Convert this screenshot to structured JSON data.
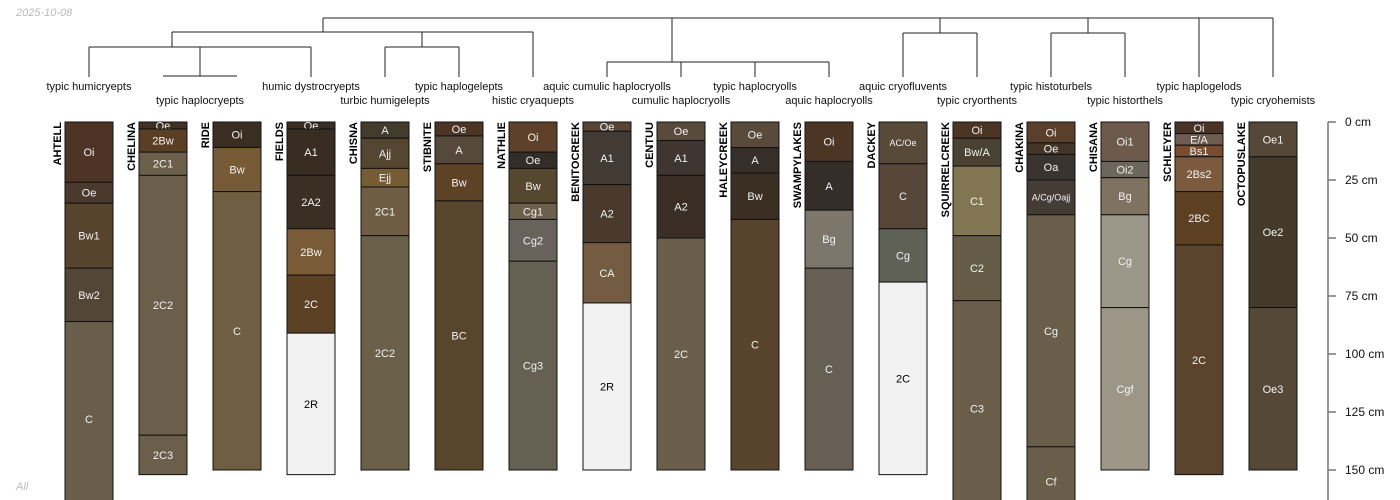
{
  "date": "2025-10-08",
  "footer": "All",
  "axis": {
    "unit": "cm",
    "ticks": [
      0,
      25,
      50,
      75,
      100,
      125,
      150
    ]
  },
  "taxa": [
    "typic humicryepts",
    "typic haplocryepts",
    "humic dystrocryepts",
    "turbic humigelepts",
    "typic haplogelepts",
    "histic cryaquepts",
    "aquic cumulic haplocryolls",
    "cumulic haplocryolls",
    "typic haplocryolls",
    "aquic haplocryolls",
    "aquic cryofluvents",
    "typic cryorthents",
    "typic histoturbels",
    "typic historthels",
    "typic haplogelods",
    "typic cryohemists"
  ],
  "profiles": [
    {
      "name": "AHTELL",
      "horizons": [
        [
          "Oi",
          0,
          26,
          "#4d3424"
        ],
        [
          "Oe",
          26,
          35,
          "#4a3a2e"
        ],
        [
          "Bw1",
          35,
          63,
          "#56442e"
        ],
        [
          "Bw2",
          63,
          86,
          "#544636"
        ],
        [
          "C",
          86,
          170,
          "#6a5d4a"
        ]
      ]
    },
    {
      "name": "CHELINA",
      "horizons": [
        [
          "Oe",
          0,
          3,
          "#3f3224"
        ],
        [
          "2Bw",
          3,
          13,
          "#5b3f24"
        ],
        [
          "2C1",
          13,
          23,
          "#6c604d"
        ],
        [
          "2C2",
          23,
          135,
          "#6b5e4a"
        ],
        [
          "2C3",
          135,
          152,
          "#6b5e4a"
        ]
      ]
    },
    {
      "name": "RIDE",
      "horizons": [
        [
          "Oi",
          0,
          11,
          "#3a2d22"
        ],
        [
          "Bw",
          11,
          30,
          "#775a36"
        ],
        [
          "C",
          30,
          150,
          "#705e43"
        ]
      ]
    },
    {
      "name": "FIELDS",
      "horizons": [
        [
          "Oe",
          0,
          3,
          "#3a2e24"
        ],
        [
          "A1",
          3,
          23,
          "#392d22"
        ],
        [
          "2A2",
          23,
          46,
          "#3b2e22"
        ],
        [
          "2Bw",
          46,
          66,
          "#7a5b38"
        ],
        [
          "2C",
          66,
          91,
          "#5b4024"
        ],
        [
          "2R",
          91,
          152,
          "#f2f2f2"
        ]
      ]
    },
    {
      "name": "CHISNA",
      "horizons": [
        [
          "A",
          0,
          7,
          "#433b2c"
        ],
        [
          "Ajj",
          7,
          20,
          "#554631"
        ],
        [
          "Ejj",
          20,
          28,
          "#755c34"
        ],
        [
          "2C1",
          28,
          49,
          "#6e5d43"
        ],
        [
          "2C2",
          49,
          150,
          "#6a5f49"
        ]
      ]
    },
    {
      "name": "STIBNITE",
      "horizons": [
        [
          "Oe",
          0,
          6,
          "#4d3526"
        ],
        [
          "A",
          6,
          18,
          "#56493b"
        ],
        [
          "Bw",
          18,
          34,
          "#5e4226"
        ],
        [
          "BC",
          34,
          150,
          "#57452c"
        ]
      ]
    },
    {
      "name": "NATHLIE",
      "horizons": [
        [
          "Oi",
          0,
          13,
          "#5f4028"
        ],
        [
          "Oe",
          13,
          20,
          "#332d28"
        ],
        [
          "Bw",
          20,
          35,
          "#56472f"
        ],
        [
          "Cg1",
          35,
          42,
          "#6c604d"
        ],
        [
          "Cg2",
          42,
          60,
          "#67625a"
        ],
        [
          "Cg3",
          60,
          150,
          "#656052"
        ]
      ]
    },
    {
      "name": "BENITOCREEK",
      "horizons": [
        [
          "Oe",
          0,
          4,
          "#574638"
        ],
        [
          "A1",
          4,
          27,
          "#423a33"
        ],
        [
          "A2",
          27,
          52,
          "#4a3a2e"
        ],
        [
          "CA",
          52,
          78,
          "#735c42"
        ],
        [
          "2R",
          78,
          150,
          "#f2f2f2"
        ]
      ]
    },
    {
      "name": "CENTUU",
      "horizons": [
        [
          "Oe",
          0,
          8,
          "#5a4a3c"
        ],
        [
          "A1",
          8,
          23,
          "#403631"
        ],
        [
          "A2",
          23,
          50,
          "#3a2e24"
        ],
        [
          "2C",
          50,
          150,
          "#6a5e4a"
        ]
      ]
    },
    {
      "name": "HALEYCREEK",
      "horizons": [
        [
          "Oe",
          0,
          11,
          "#5a4a3c"
        ],
        [
          "A",
          11,
          22,
          "#362e28"
        ],
        [
          "Bw",
          22,
          42,
          "#3b2e22"
        ],
        [
          "C",
          42,
          150,
          "#58442c"
        ]
      ]
    },
    {
      "name": "SWAMPYLAKES",
      "horizons": [
        [
          "Oi",
          0,
          17,
          "#4d3526"
        ],
        [
          "A",
          17,
          38,
          "#342d28"
        ],
        [
          "Bg",
          38,
          63,
          "#7d776b"
        ],
        [
          "C",
          63,
          150,
          "#675f53"
        ]
      ]
    },
    {
      "name": "DACKEY",
      "horizons": [
        [
          "AC/Oe",
          0,
          18,
          "#594939"
        ],
        [
          "C",
          18,
          46,
          "#584738"
        ],
        [
          "Cg",
          46,
          69,
          "#5f6157"
        ],
        [
          "2C",
          69,
          152,
          "#f2f2f2"
        ]
      ]
    },
    {
      "name": "SQUIRRELCREEK",
      "horizons": [
        [
          "Oi",
          0,
          7,
          "#4d3526"
        ],
        [
          "Bw/A",
          7,
          19,
          "#4a4232"
        ],
        [
          "C1",
          19,
          49,
          "#817552"
        ],
        [
          "C2",
          49,
          77,
          "#655c47"
        ],
        [
          "C3",
          77,
          170,
          "#6a5e4a"
        ]
      ]
    },
    {
      "name": "CHAKINA",
      "horizons": [
        [
          "Oi",
          0,
          9,
          "#5a3f2a"
        ],
        [
          "Oe",
          9,
          14,
          "#433528"
        ],
        [
          "Oa",
          14,
          25,
          "#3a3431"
        ],
        [
          "A/Cg/Oajj",
          25,
          40,
          "#463c36"
        ],
        [
          "Cg",
          40,
          140,
          "#6a5e4a"
        ],
        [
          "Cf",
          140,
          170,
          "#6a5e4a"
        ]
      ]
    },
    {
      "name": "CHISANA",
      "horizons": [
        [
          "Oi1",
          0,
          17,
          "#6e5a4c"
        ],
        [
          "Oi2",
          17,
          24,
          "#6e665a"
        ],
        [
          "Bg",
          24,
          40,
          "#807260"
        ],
        [
          "Cg",
          40,
          80,
          "#9d978a"
        ],
        [
          "Cgf",
          80,
          150,
          "#9d9586"
        ]
      ]
    },
    {
      "name": "SCHLEYER",
      "horizons": [
        [
          "Oi",
          0,
          5,
          "#4a3428"
        ],
        [
          "E/A",
          5,
          10,
          "#6e5d4e"
        ],
        [
          "Bs1",
          10,
          15,
          "#7a4c30"
        ],
        [
          "2Bs2",
          15,
          30,
          "#7c5a3e"
        ],
        [
          "2BC",
          30,
          53,
          "#5d3f22"
        ],
        [
          "2C",
          53,
          152,
          "#5a442e"
        ]
      ]
    },
    {
      "name": "OCTOPUSLAKE",
      "horizons": [
        [
          "Oe1",
          0,
          15,
          "#554838"
        ],
        [
          "Oe2",
          15,
          80,
          "#433a2a"
        ],
        [
          "Oe3",
          80,
          150,
          "#554836"
        ]
      ]
    }
  ]
}
